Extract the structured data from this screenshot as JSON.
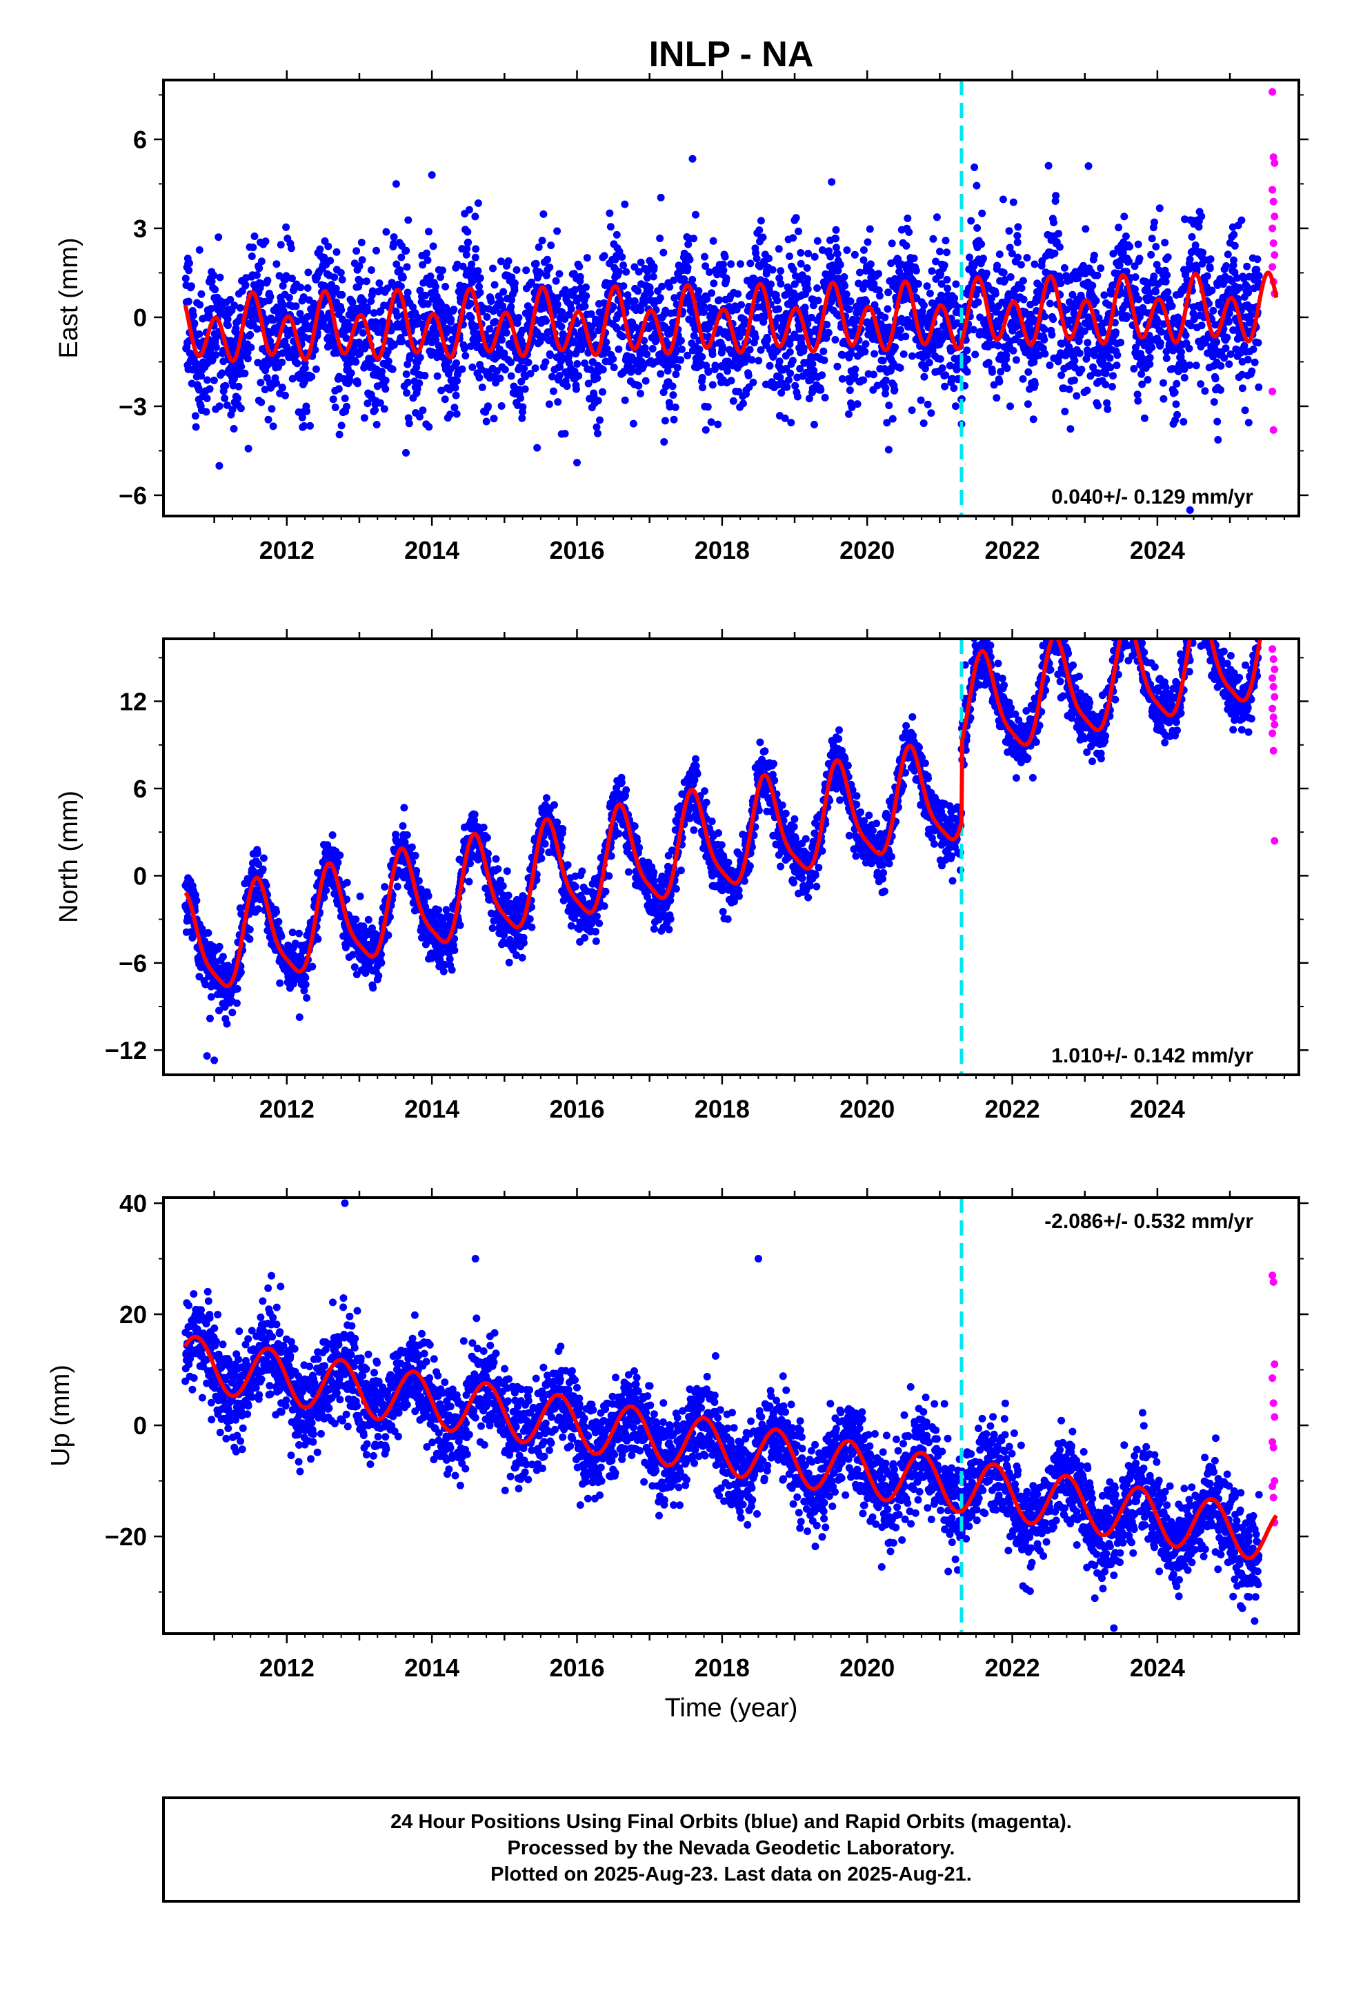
{
  "title": "INLP - NA",
  "xlabel": "Time (year)",
  "footer": {
    "line1": "24 Hour Positions Using Final Orbits (blue) and Rapid Orbits (magenta).",
    "line2": "Processed by the Nevada Geodetic Laboratory.",
    "line3": "Plotted on 2025-Aug-23. Last data on 2025-Aug-21."
  },
  "colors": {
    "final_orbits": "#0000ff",
    "rapid_orbits": "#ff00ff",
    "model": "#ff0000",
    "antenna_change": "#00e5ee",
    "frame": "#000000"
  },
  "chart_data": [
    {
      "type": "scatter",
      "ylabel": "East (mm)",
      "xlim": [
        2010.3,
        2025.95
      ],
      "ylim": [
        -6.7,
        8.0
      ],
      "xticks": [
        2012,
        2014,
        2016,
        2018,
        2020,
        2022,
        2024
      ],
      "yticks": [
        -6,
        -3,
        0,
        3,
        6
      ],
      "rate_label": "0.040+/- 0.129 mm/yr",
      "rate_position": "bottom-right",
      "offset_line_x": 2021.3,
      "data_start": 2010.6,
      "final_end": 2025.4,
      "rapid_end": 2025.64,
      "model": {
        "rate": 0.04,
        "intercept": -0.2,
        "annual_cos": -0.4,
        "annual_sin": -0.15,
        "semi_cos": 0.85,
        "semi_sin": 0.25,
        "offsets": [
          {
            "x": 2021.3,
            "dy": 0.1
          }
        ]
      },
      "scatter_sd": 1.2,
      "final_outliers": [
        [
          2014.0,
          4.8
        ],
        [
          2016.0,
          -4.9
        ],
        [
          2015.45,
          -4.4
        ],
        [
          2017.2,
          -4.2
        ],
        [
          2024.45,
          -6.5
        ],
        [
          2021.3,
          -3.6
        ],
        [
          2022.6,
          4.1
        ],
        [
          2023.05,
          5.1
        ]
      ],
      "rapid_points": [
        [
          2025.6,
          7.6
        ],
        [
          2025.6,
          5.4
        ],
        [
          2025.6,
          5.2
        ],
        [
          2025.6,
          4.3
        ],
        [
          2025.6,
          3.9
        ],
        [
          2025.6,
          3.4
        ],
        [
          2025.6,
          3.0
        ],
        [
          2025.6,
          2.5
        ],
        [
          2025.6,
          2.1
        ],
        [
          2025.6,
          1.7
        ],
        [
          2025.6,
          1.2
        ],
        [
          2025.6,
          0.8
        ],
        [
          2025.6,
          -2.5
        ],
        [
          2025.6,
          -3.8
        ]
      ]
    },
    {
      "type": "scatter",
      "ylabel": "North (mm)",
      "xlim": [
        2010.3,
        2025.95
      ],
      "ylim": [
        -13.7,
        16.3
      ],
      "xticks": [
        2012,
        2014,
        2016,
        2018,
        2020,
        2022,
        2024
      ],
      "yticks": [
        -12,
        -6,
        0,
        6,
        12
      ],
      "rate_label": "1.010+/- 0.142 mm/yr",
      "rate_position": "bottom-right",
      "offset_line_x": 2021.3,
      "data_start": 2010.6,
      "final_end": 2025.4,
      "rapid_end": 2025.64,
      "model": {
        "rate": 1.01,
        "intercept": 2.3,
        "annual_cos": -2.6,
        "annual_sin": -2.1,
        "semi_cos": 0.6,
        "semi_sin": 0.5,
        "offsets": [
          {
            "x": 2021.3,
            "dy": 5.5
          }
        ]
      },
      "scatter_sd": 1.0,
      "final_outliers": [
        [
          2010.9,
          -12.4
        ],
        [
          2011.0,
          -12.7
        ],
        [
          2021.35,
          14.5
        ],
        [
          2022.5,
          16.0
        ],
        [
          2024.6,
          15.8
        ],
        [
          2023.6,
          14.8
        ]
      ],
      "rapid_points": [
        [
          2025.6,
          15.6
        ],
        [
          2025.6,
          14.9
        ],
        [
          2025.6,
          14.2
        ],
        [
          2025.6,
          13.6
        ],
        [
          2025.6,
          13.0
        ],
        [
          2025.6,
          12.3
        ],
        [
          2025.6,
          11.5
        ],
        [
          2025.6,
          10.9
        ],
        [
          2025.6,
          10.4
        ],
        [
          2025.6,
          9.8
        ],
        [
          2025.6,
          8.6
        ],
        [
          2025.6,
          2.4
        ]
      ]
    },
    {
      "type": "scatter",
      "ylabel": "Up (mm)",
      "xlim": [
        2010.3,
        2025.95
      ],
      "ylim": [
        -37.5,
        41.0
      ],
      "xticks": [
        2012,
        2014,
        2016,
        2018,
        2020,
        2022,
        2024
      ],
      "yticks": [
        -20,
        0,
        20,
        40
      ],
      "rate_label": "-2.086+/- 0.532 mm/yr",
      "rate_position": "top-right",
      "offset_line_x": 2021.3,
      "data_start": 2010.6,
      "final_end": 2025.4,
      "rapid_end": 2025.64,
      "model": {
        "rate": -2.086,
        "intercept": -4.0,
        "annual_cos": 0.0,
        "annual_sin": -4.8,
        "semi_cos": 0.0,
        "semi_sin": 0.0,
        "offsets": [
          {
            "x": 2021.3,
            "dy": 0.0
          }
        ]
      },
      "scatter_sd": 4.2,
      "final_outliers": [
        [
          2012.8,
          40.0
        ],
        [
          2023.4,
          -36.5
        ],
        [
          2023.4,
          -27.0
        ],
        [
          2020.2,
          -25.5
        ],
        [
          2018.5,
          30.0
        ],
        [
          2014.6,
          30.0
        ]
      ],
      "rapid_points": [
        [
          2025.6,
          27.0
        ],
        [
          2025.6,
          25.8
        ],
        [
          2025.6,
          11.0
        ],
        [
          2025.6,
          8.5
        ],
        [
          2025.6,
          4.0
        ],
        [
          2025.6,
          1.5
        ],
        [
          2025.6,
          -3.0
        ],
        [
          2025.6,
          -4.0
        ],
        [
          2025.6,
          -10.0
        ],
        [
          2025.6,
          -11.0
        ],
        [
          2025.6,
          -13.0
        ],
        [
          2025.6,
          -17.5
        ]
      ]
    }
  ]
}
